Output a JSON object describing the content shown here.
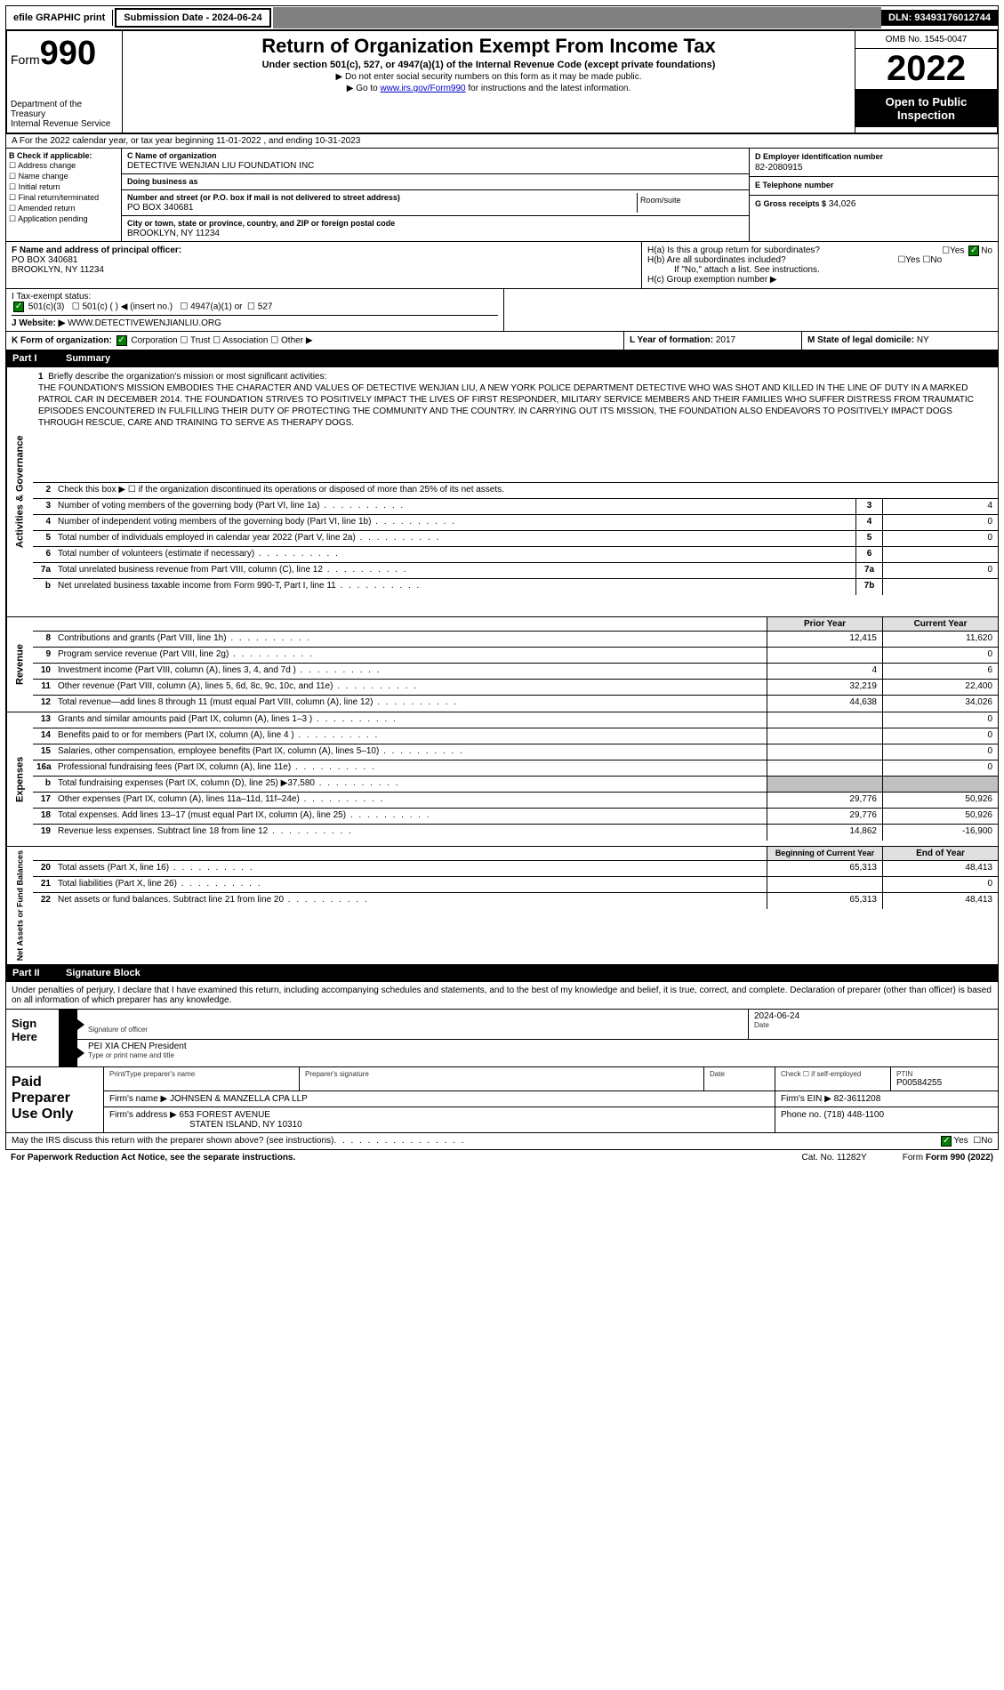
{
  "topbar": {
    "efile": "efile GRAPHIC print",
    "submission": "Submission Date - 2024-06-24",
    "dln": "DLN: 93493176012744"
  },
  "header": {
    "form_prefix": "Form",
    "form_number": "990",
    "dept": "Department of the Treasury\nInternal Revenue Service",
    "title": "Return of Organization Exempt From Income Tax",
    "subtitle": "Under section 501(c), 527, or 4947(a)(1) of the Internal Revenue Code (except private foundations)",
    "note1": "▶ Do not enter social security numbers on this form as it may be made public.",
    "note2_pre": "▶ Go to ",
    "note2_link": "www.irs.gov/Form990",
    "note2_post": " for instructions and the latest information.",
    "omb": "OMB No. 1545-0047",
    "year": "2022",
    "inspection": "Open to Public Inspection"
  },
  "sectionA": {
    "tax_year": "A For the 2022 calendar year, or tax year beginning 11-01-2022  , and ending 10-31-2023",
    "b_label": "B Check if applicable:",
    "b_items": [
      "Address change",
      "Name change",
      "Initial return",
      "Final return/terminated",
      "Amended return",
      "Application pending"
    ],
    "c_name_lbl": "C Name of organization",
    "c_name": "DETECTIVE WENJIAN LIU FOUNDATION INC",
    "dba_lbl": "Doing business as",
    "dba": "",
    "street_lbl": "Number and street (or P.O. box if mail is not delivered to street address)",
    "street": "PO BOX 340681",
    "room_lbl": "Room/suite",
    "city_lbl": "City or town, state or province, country, and ZIP or foreign postal code",
    "city": "BROOKLYN, NY  11234",
    "d_lbl": "D Employer identification number",
    "d_val": "82-2080915",
    "e_lbl": "E Telephone number",
    "e_val": "",
    "g_lbl": "G Gross receipts $",
    "g_val": "34,026",
    "f_lbl": "F  Name and address of principal officer:",
    "f_addr1": "PO BOX 340681",
    "f_addr2": "BROOKLYN, NY  11234",
    "h_a": "H(a)  Is this a group return for subordinates?",
    "h_b": "H(b)  Are all subordinates included?",
    "h_b_note": "If \"No,\" attach a list. See instructions.",
    "h_c": "H(c)  Group exemption number ▶",
    "i_lbl": "I     Tax-exempt status:",
    "i_501c3": "501(c)(3)",
    "i_501c": "501(c) (   ) ◀ (insert no.)",
    "i_4947": "4947(a)(1) or",
    "i_527": "527",
    "j_lbl": "J    Website: ▶",
    "j_val": "WWW.DETECTIVEWENJIANLIU.ORG",
    "k_lbl": "K Form of organization:",
    "k_corp": "Corporation",
    "k_trust": "Trust",
    "k_assoc": "Association",
    "k_other": "Other ▶",
    "l_lbl": "L Year of formation:",
    "l_val": "2017",
    "m_lbl": "M State of legal domicile:",
    "m_val": "NY"
  },
  "part1": {
    "header_num": "Part I",
    "header_title": "Summary",
    "vtab_gov": "Activities & Governance",
    "vtab_rev": "Revenue",
    "vtab_exp": "Expenses",
    "vtab_net": "Net Assets or Fund Balances",
    "line1_lbl": "Briefly describe the organization's mission or most significant activities:",
    "line1_text": "THE FOUNDATION'S MISSION EMBODIES THE CHARACTER AND VALUES OF DETECTIVE WENJIAN LIU, A NEW YORK POLICE DEPARTMENT DETECTIVE WHO WAS SHOT AND KILLED IN THE LINE OF DUTY IN A MARKED PATROL CAR IN DECEMBER 2014. THE FOUNDATION STRIVES TO POSITIVELY IMPACT THE LIVES OF FIRST RESPONDER, MILITARY SERVICE MEMBERS AND THEIR FAMILIES WHO SUFFER DISTRESS FROM TRAUMATIC EPISODES ENCOUNTERED IN FULFILLING THEIR DUTY OF PROTECTING THE COMMUNITY AND THE COUNTRY. IN CARRYING OUT ITS MISSION, THE FOUNDATION ALSO ENDEAVORS TO POSITIVELY IMPACT DOGS THROUGH RESCUE, CARE AND TRAINING TO SERVE AS THERAPY DOGS.",
    "line2": "Check this box ▶ ☐ if the organization discontinued its operations or disposed of more than 25% of its net assets.",
    "rows_gov": [
      {
        "n": "3",
        "t": "Number of voting members of the governing body (Part VI, line 1a)",
        "box": "3",
        "v": "4"
      },
      {
        "n": "4",
        "t": "Number of independent voting members of the governing body (Part VI, line 1b)",
        "box": "4",
        "v": "0"
      },
      {
        "n": "5",
        "t": "Total number of individuals employed in calendar year 2022 (Part V, line 2a)",
        "box": "5",
        "v": "0"
      },
      {
        "n": "6",
        "t": "Total number of volunteers (estimate if necessary)",
        "box": "6",
        "v": ""
      },
      {
        "n": "7a",
        "t": "Total unrelated business revenue from Part VIII, column (C), line 12",
        "box": "7a",
        "v": "0"
      },
      {
        "n": "b",
        "t": "Net unrelated business taxable income from Form 990-T, Part I, line 11",
        "box": "7b",
        "v": ""
      }
    ],
    "col_prior": "Prior Year",
    "col_current": "Current Year",
    "rows_rev": [
      {
        "n": "8",
        "t": "Contributions and grants (Part VIII, line 1h)",
        "p": "12,415",
        "c": "11,620"
      },
      {
        "n": "9",
        "t": "Program service revenue (Part VIII, line 2g)",
        "p": "",
        "c": "0"
      },
      {
        "n": "10",
        "t": "Investment income (Part VIII, column (A), lines 3, 4, and 7d )",
        "p": "4",
        "c": "6"
      },
      {
        "n": "11",
        "t": "Other revenue (Part VIII, column (A), lines 5, 6d, 8c, 9c, 10c, and 11e)",
        "p": "32,219",
        "c": "22,400"
      },
      {
        "n": "12",
        "t": "Total revenue—add lines 8 through 11 (must equal Part VIII, column (A), line 12)",
        "p": "44,638",
        "c": "34,026"
      }
    ],
    "rows_exp": [
      {
        "n": "13",
        "t": "Grants and similar amounts paid (Part IX, column (A), lines 1–3 )",
        "p": "",
        "c": "0"
      },
      {
        "n": "14",
        "t": "Benefits paid to or for members (Part IX, column (A), line 4 )",
        "p": "",
        "c": "0"
      },
      {
        "n": "15",
        "t": "Salaries, other compensation, employee benefits (Part IX, column (A), lines 5–10)",
        "p": "",
        "c": "0"
      },
      {
        "n": "16a",
        "t": "Professional fundraising fees (Part IX, column (A), line 11e)",
        "p": "",
        "c": "0"
      },
      {
        "n": "b",
        "t": "Total fundraising expenses (Part IX, column (D), line 25) ▶37,580",
        "p": "shaded",
        "c": "shaded"
      },
      {
        "n": "17",
        "t": "Other expenses (Part IX, column (A), lines 11a–11d, 11f–24e)",
        "p": "29,776",
        "c": "50,926"
      },
      {
        "n": "18",
        "t": "Total expenses. Add lines 13–17 (must equal Part IX, column (A), line 25)",
        "p": "29,776",
        "c": "50,926"
      },
      {
        "n": "19",
        "t": "Revenue less expenses. Subtract line 18 from line 12",
        "p": "14,862",
        "c": "-16,900"
      }
    ],
    "col_begin": "Beginning of Current Year",
    "col_end": "End of Year",
    "rows_net": [
      {
        "n": "20",
        "t": "Total assets (Part X, line 16)",
        "p": "65,313",
        "c": "48,413"
      },
      {
        "n": "21",
        "t": "Total liabilities (Part X, line 26)",
        "p": "",
        "c": "0"
      },
      {
        "n": "22",
        "t": "Net assets or fund balances. Subtract line 21 from line 20",
        "p": "65,313",
        "c": "48,413"
      }
    ]
  },
  "part2": {
    "header_num": "Part II",
    "header_title": "Signature Block",
    "declaration": "Under penalties of perjury, I declare that I have examined this return, including accompanying schedules and statements, and to the best of my knowledge and belief, it is true, correct, and complete. Declaration of preparer (other than officer) is based on all information of which preparer has any knowledge.",
    "sign_here": "Sign Here",
    "sig_officer_lbl": "Signature of officer",
    "sig_date_lbl": "Date",
    "sig_date": "2024-06-24",
    "sig_name": "PEI XIA CHEN  President",
    "sig_name_lbl": "Type or print name and title",
    "paid_label": "Paid Preparer Use Only",
    "prep_name_lbl": "Print/Type preparer's name",
    "prep_sig_lbl": "Preparer's signature",
    "prep_date_lbl": "Date",
    "prep_check_lbl": "Check ☐ if self-employed",
    "prep_ptin_lbl": "PTIN",
    "prep_ptin": "P00584255",
    "firm_name_lbl": "Firm's name    ▶",
    "firm_name": "JOHNSEN & MANZELLA CPA LLP",
    "firm_ein_lbl": "Firm's EIN ▶",
    "firm_ein": "82-3611208",
    "firm_addr_lbl": "Firm's address ▶",
    "firm_addr1": "653 FOREST AVENUE",
    "firm_addr2": "STATEN ISLAND, NY  10310",
    "firm_phone_lbl": "Phone no.",
    "firm_phone": "(718) 448-1100",
    "discuss": "May the IRS discuss this return with the preparer shown above? (see instructions)",
    "yes": "Yes",
    "no": "No"
  },
  "footer": {
    "pra": "For Paperwork Reduction Act Notice, see the separate instructions.",
    "cat": "Cat. No. 11282Y",
    "form": "Form 990 (2022)"
  },
  "colors": {
    "black": "#000000",
    "green_check": "#008000",
    "link": "#0000cc",
    "shaded": "#c0c0c0",
    "gray_bar": "#808080"
  }
}
